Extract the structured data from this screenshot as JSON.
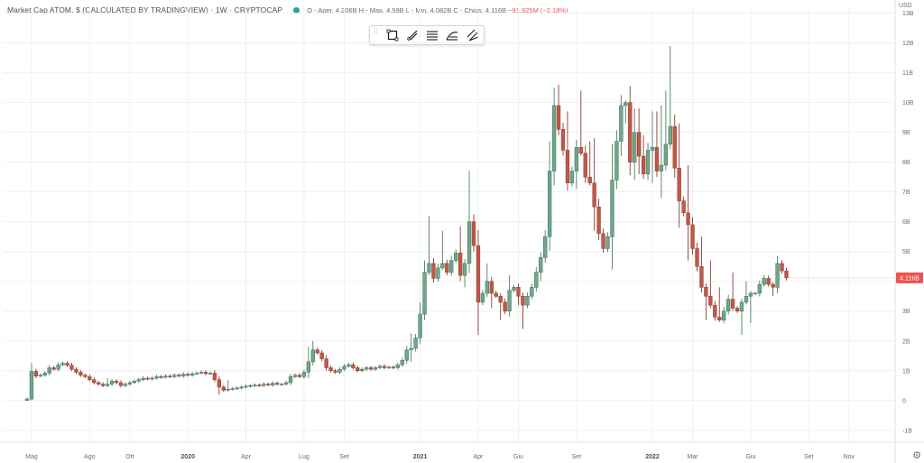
{
  "header": {
    "title": "Market Cap ATOM, $ (CALCULATED BY TRADINGVIEW) · 1W · CRYPTOCAP",
    "ohlc_prefix": "O - Aper. 4.206B  H - Max. 4.59B  L - Min. 4.082B  C - Chius. 4.116B ",
    "change": "−91.925M (−2.18%)"
  },
  "unit_label": "USD",
  "toolbar": {
    "tools": [
      "rectangle-icon",
      "trend-line-icon",
      "horizontal-lines-icon",
      "fib-icon",
      "parallel-lines-icon"
    ]
  },
  "colors": {
    "up": "#26a69a",
    "up_fill": "#6fa78a",
    "down": "#b94a3b",
    "down_fill": "#c0584a",
    "wick": "#5d6066",
    "grid": "#eef0f3",
    "last_price_bg": "#ef5350"
  },
  "last_price": 4.116,
  "last_price_label": "4.116B",
  "chart_data": {
    "type": "candlestick",
    "ylim": [
      -1,
      13
    ],
    "yticks": [
      {
        "value": 13,
        "label": "13B"
      },
      {
        "value": 12,
        "label": "12B"
      },
      {
        "value": 11,
        "label": "11B"
      },
      {
        "value": 10,
        "label": "10B"
      },
      {
        "value": 9,
        "label": "9B"
      },
      {
        "value": 8,
        "label": "8B"
      },
      {
        "value": 7,
        "label": "7B"
      },
      {
        "value": 6,
        "label": "6B"
      },
      {
        "value": 5,
        "label": "5B"
      },
      {
        "value": 4,
        "label": "4B"
      },
      {
        "value": 3,
        "label": "3B"
      },
      {
        "value": 2,
        "label": "2B"
      },
      {
        "value": 1,
        "label": "1B"
      },
      {
        "value": 0,
        "label": "0"
      },
      {
        "value": -1,
        "label": "-1B"
      }
    ],
    "xticks": [
      {
        "week": 1,
        "label": "Mag",
        "bold": false
      },
      {
        "week": 14,
        "label": "Ago",
        "bold": false
      },
      {
        "week": 23,
        "label": "Ott",
        "bold": false
      },
      {
        "week": 36,
        "label": "2020",
        "bold": true
      },
      {
        "week": 49,
        "label": "Apr",
        "bold": false
      },
      {
        "week": 62,
        "label": "Lug",
        "bold": false
      },
      {
        "week": 71,
        "label": "Set",
        "bold": false
      },
      {
        "week": 88,
        "label": "2021",
        "bold": true
      },
      {
        "week": 101,
        "label": "Apr",
        "bold": false
      },
      {
        "week": 110,
        "label": "Giu",
        "bold": false
      },
      {
        "week": 123,
        "label": "Set",
        "bold": false
      },
      {
        "week": 140,
        "label": "2022",
        "bold": true
      },
      {
        "week": 149,
        "label": "Mar",
        "bold": false
      },
      {
        "week": 162,
        "label": "Giu",
        "bold": false
      },
      {
        "week": 175,
        "label": "Set",
        "bold": false
      },
      {
        "week": 184,
        "label": "Nov",
        "bold": false
      }
    ],
    "closes": [
      0.05,
      0.98,
      0.82,
      0.85,
      0.92,
      1.1,
      1.05,
      1.2,
      1.25,
      1.18,
      1.05,
      0.95,
      0.85,
      0.8,
      0.7,
      0.6,
      0.55,
      0.5,
      0.55,
      0.65,
      0.6,
      0.5,
      0.55,
      0.6,
      0.65,
      0.7,
      0.75,
      0.72,
      0.75,
      0.8,
      0.78,
      0.82,
      0.8,
      0.85,
      0.82,
      0.88,
      0.85,
      0.9,
      0.92,
      0.95,
      0.9,
      0.92,
      0.7,
      0.45,
      0.35,
      0.38,
      0.4,
      0.42,
      0.45,
      0.48,
      0.5,
      0.52,
      0.5,
      0.55,
      0.52,
      0.58,
      0.55,
      0.55,
      0.6,
      0.8,
      0.85,
      0.8,
      0.95,
      1.3,
      1.7,
      1.6,
      1.4,
      1.1,
      1.0,
      0.95,
      1.05,
      1.15,
      1.2,
      1.1,
      1.0,
      1.05,
      1.1,
      1.05,
      1.1,
      1.15,
      1.1,
      1.12,
      1.1,
      1.2,
      1.35,
      1.7,
      1.75,
      2.1,
      2.9,
      4.3,
      4.6,
      4.1,
      4.45,
      4.6,
      4.3,
      4.7,
      4.95,
      4.2,
      4.6,
      6.0,
      5.2,
      3.3,
      3.6,
      4.0,
      3.6,
      3.5,
      3.3,
      3.0,
      3.7,
      3.8,
      3.5,
      3.2,
      3.5,
      3.8,
      4.3,
      4.8,
      5.5,
      7.7,
      9.9,
      9.1,
      8.4,
      7.3,
      7.7,
      8.5,
      8.3,
      7.5,
      7.3,
      6.5,
      5.6,
      5.1,
      5.5,
      7.4,
      8.7,
      9.9,
      10.0,
      8.0,
      9.0,
      8.2,
      7.6,
      8.4,
      8.5,
      7.7,
      7.9,
      8.6,
      9.2,
      7.8,
      6.7,
      6.3,
      5.9,
      5.1,
      4.5,
      3.8,
      3.5,
      3.2,
      2.8,
      2.7,
      3.0,
      3.4,
      3.1,
      3.0,
      3.3,
      3.5,
      3.6,
      3.6,
      3.9,
      4.1,
      3.9,
      3.8,
      4.6,
      4.35,
      4.116
    ],
    "highs_extra": {
      "18": 0.2,
      "45": 0.3,
      "63": 0.5,
      "64": 0.3,
      "86": 0.5,
      "88": 0.4,
      "90": 1.6,
      "93": 1.1,
      "97": 0.9,
      "99": 1.7,
      "103": 0.6,
      "108": 0.5,
      "117": 1.0,
      "119": 0.7,
      "121": 1.3,
      "124": 1.9,
      "126": 1.2,
      "127": 1.5,
      "131": 1.2,
      "136": 0.8,
      "137": 0.8,
      "138": 0.7,
      "140": 1.2,
      "141": 1.2,
      "142": 2.0,
      "143": 1.8,
      "144": 2.7,
      "146": 1.5,
      "148": 1.6,
      "151": 1.0,
      "153": 1.2,
      "155": 1.0,
      "158": 0.9,
      "161": 0.5,
      "171": 0.4,
      "174": 0.9,
      "175": 0.5
    },
    "lows_extra": {
      "43": 0.25,
      "63": 0.2,
      "86": 0.4,
      "89": 0.2,
      "98": 0.4,
      "101": 1.1,
      "104": 0.5,
      "106": 0.6,
      "110": 0.3,
      "111": 0.8,
      "115": 0.3,
      "123": 0.6,
      "127": 0.8,
      "131": 1.1,
      "133": 0.5,
      "134": 0.6,
      "136": 0.6,
      "137": 0.6,
      "140": 1.1,
      "142": 0.9,
      "146": 0.9,
      "148": 1.2,
      "152": 0.8,
      "160": 0.8,
      "162": 0.9,
      "167": 0.3
    }
  }
}
